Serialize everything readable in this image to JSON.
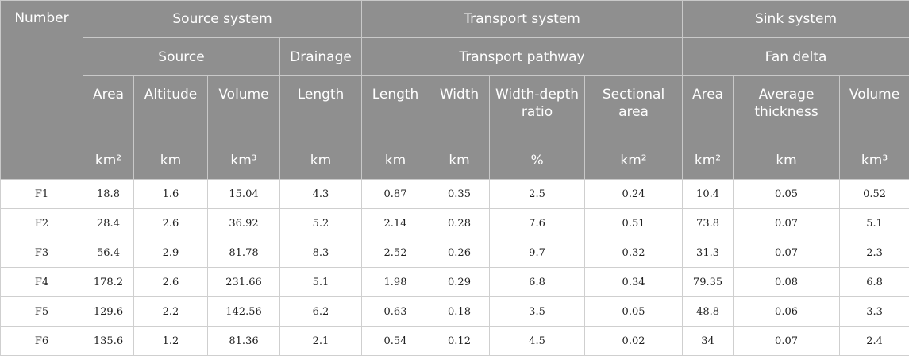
{
  "header": {
    "number": "Number",
    "groups": {
      "source_system": "Source system",
      "transport_system": "Transport system",
      "sink_system": "Sink system"
    },
    "subgroups": {
      "source": "Source",
      "drainage": "Drainage",
      "transport_pathway": "Transport pathway",
      "fan_delta": "Fan delta"
    },
    "columns": [
      "Area",
      "Altitude",
      "Volume",
      "Length",
      "Length",
      "Width",
      "Width-depth ratio",
      "Sectional area",
      "Area",
      "Average thickness",
      "Volume"
    ],
    "units": [
      "km²",
      "km",
      "km³",
      "km",
      "km",
      "km",
      "%",
      "km²",
      "km²",
      "km",
      "km³"
    ]
  },
  "rows": [
    [
      "F1",
      "18.8",
      "1.6",
      "15.04",
      "4.3",
      "0.87",
      "0.35",
      "2.5",
      "0.24",
      "10.4",
      "0.05",
      "0.52"
    ],
    [
      "F2",
      "28.4",
      "2.6",
      "36.92",
      "5.2",
      "2.14",
      "0.28",
      "7.6",
      "0.51",
      "73.8",
      "0.07",
      "5.1"
    ],
    [
      "F3",
      "56.4",
      "2.9",
      "81.78",
      "8.3",
      "2.52",
      "0.26",
      "9.7",
      "0.32",
      "31.3",
      "0.07",
      "2.3"
    ],
    [
      "F4",
      "178.2",
      "2.6",
      "231.66",
      "5.1",
      "1.98",
      "0.29",
      "6.8",
      "0.34",
      "79.35",
      "0.08",
      "6.8"
    ],
    [
      "F5",
      "129.6",
      "2.2",
      "142.56",
      "6.2",
      "0.63",
      "0.18",
      "3.5",
      "0.05",
      "48.8",
      "0.06",
      "3.3"
    ],
    [
      "F6",
      "135.6",
      "1.2",
      "81.36",
      "2.1",
      "0.54",
      "0.12",
      "4.5",
      "0.02",
      "34",
      "0.07",
      "2.4"
    ]
  ]
}
